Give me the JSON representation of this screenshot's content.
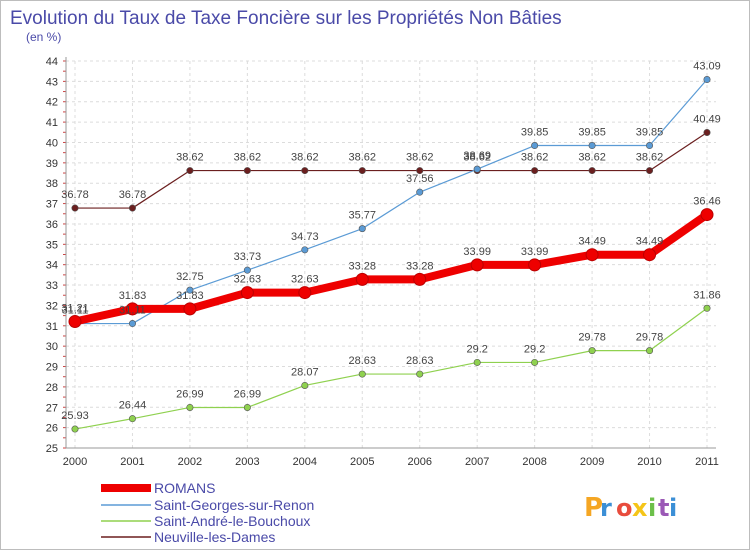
{
  "chart_data": {
    "type": "line",
    "title": "Evolution du Taux de Taxe Foncière sur les Propriétés Non Bâties",
    "subtitle": "(en %)",
    "x": [
      "2000",
      "2001",
      "2002",
      "2003",
      "2004",
      "2005",
      "2006",
      "2007",
      "2008",
      "2009",
      "2010",
      "2011"
    ],
    "ylim": [
      25,
      44
    ],
    "y_ticks": [
      "25",
      "26",
      "27",
      "28",
      "29",
      "30",
      "31",
      "32",
      "33",
      "34",
      "35",
      "36",
      "37",
      "38",
      "39",
      "40",
      "41",
      "42",
      "43",
      "44"
    ],
    "grid": true,
    "legend_position": "bottom-left",
    "series": [
      {
        "name": "Neuville-les-Dames",
        "color": "#6b1f1f",
        "values": [
          36.78,
          36.78,
          38.62,
          38.62,
          38.62,
          38.62,
          38.62,
          38.62,
          38.62,
          38.62,
          38.62,
          40.49
        ],
        "labels": [
          "36.78",
          "36.78",
          "38.62",
          "38.62",
          "38.62",
          "38.62",
          "38.62",
          "38.62",
          "38.62",
          "38.62",
          "38.62",
          "40.49"
        ]
      },
      {
        "name": "Saint-André-le-Bouchoux",
        "color": "#8fd14f",
        "values": [
          25.93,
          26.44,
          26.99,
          26.99,
          28.07,
          28.63,
          28.63,
          29.2,
          29.2,
          29.78,
          29.78,
          31.86
        ],
        "labels": [
          "25.93",
          "26.44",
          "26.99",
          "26.99",
          "28.07",
          "28.63",
          "28.63",
          "29.2",
          "29.2",
          "29.78",
          "29.78",
          "31.86"
        ]
      },
      {
        "name": "Saint-Georges-sur-Renon",
        "color": "#5b9bd5",
        "values": [
          31.11,
          31.11,
          32.75,
          33.73,
          34.73,
          35.77,
          37.56,
          38.69,
          39.85,
          39.85,
          39.85,
          43.09
        ],
        "labels": [
          "31.11",
          "31.11",
          "32.75",
          "33.73",
          "34.73",
          "35.77",
          "37.56",
          "38.69",
          "39.85",
          "39.85",
          "39.85",
          "43.09"
        ]
      },
      {
        "name": "ROMANS",
        "color": "#ee0000",
        "values": [
          31.21,
          31.83,
          31.83,
          32.63,
          32.63,
          33.28,
          33.28,
          33.99,
          33.99,
          34.49,
          34.49,
          36.46
        ],
        "labels": [
          "31.21",
          "31.83",
          "31.83",
          "32.63",
          "32.63",
          "33.28",
          "33.28",
          "33.99",
          "33.99",
          "34.49",
          "34.49",
          "36.46"
        ]
      }
    ],
    "legend": [
      "ROMANS",
      "Saint-Georges-sur-Renon",
      "Saint-André-le-Bouchoux",
      "Neuville-les-Dames"
    ]
  },
  "logo": {
    "text": "Proxiti",
    "colors": [
      "#f5a623",
      "#3b8fd6",
      "#e84c3d",
      "#f5c518",
      "#6cc04a",
      "#9b59b6",
      "#3b8fd6"
    ]
  }
}
